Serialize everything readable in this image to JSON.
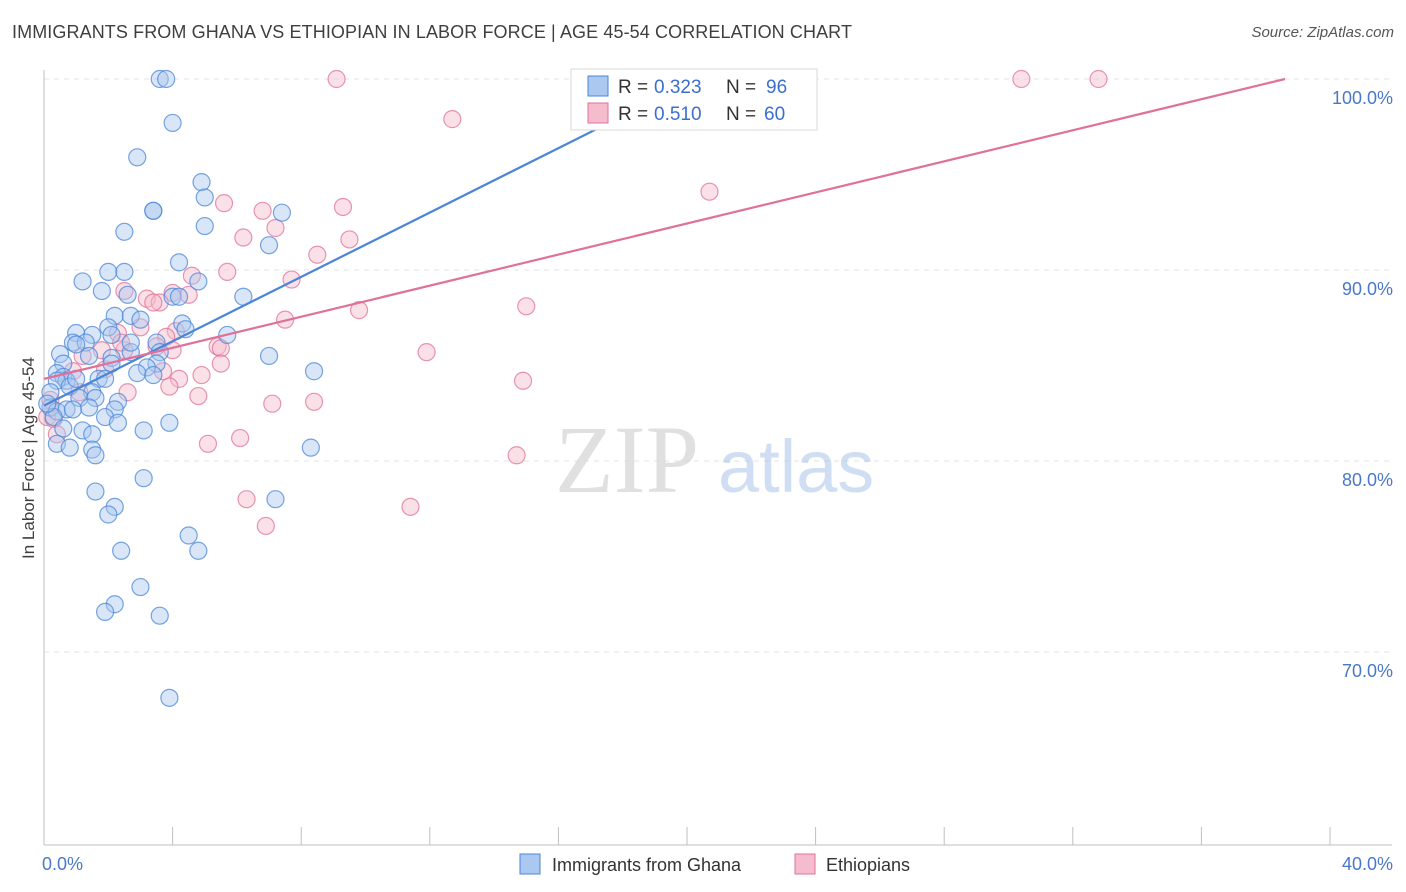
{
  "title": "IMMIGRANTS FROM GHANA VS ETHIOPIAN IN LABOR FORCE | AGE 45-54 CORRELATION CHART",
  "source": "Source: ZipAtlas.com",
  "colors": {
    "ghana": "#4a86d8",
    "ghana_fill": "#aac8f0",
    "ethiopia": "#e0719a",
    "ethiopia_fill": "#f5bccd",
    "axis_text": "#4a78c8",
    "grid": "#e3e3e3"
  },
  "chart_data": {
    "type": "scatter",
    "title": "IMMIGRANTS FROM GHANA VS ETHIOPIAN IN LABOR FORCE | AGE 45-54 CORRELATION CHART",
    "xlabel": "",
    "ylabel": "In Labor Force | Age 45-54",
    "xlim": [
      0,
      40
    ],
    "ylim": [
      60,
      101.5
    ],
    "x_tick_labels": [
      "0.0%",
      "40.0%"
    ],
    "y_ticks": [
      70,
      80,
      90,
      100
    ],
    "y_tick_labels": [
      "70.0%",
      "80.0%",
      "90.0%",
      "100.0%"
    ],
    "grid": true,
    "watermark": {
      "zip": "ZIP",
      "atlas": "atlas"
    },
    "legend": {
      "position": "top-center",
      "rows": [
        {
          "r_label": "R = ",
          "r_value": "0.323",
          "n_label": "N = ",
          "n_value": "96"
        },
        {
          "r_label": "R = ",
          "r_value": "0.510",
          "n_label": "N = ",
          "n_value": "60"
        }
      ]
    },
    "series": [
      {
        "name": "Immigrants from Ghana",
        "trend": {
          "x": [
            0.0,
            20.3
          ],
          "y": [
            82.9,
            100.0
          ]
        },
        "points": [
          [
            3.6,
            100
          ],
          [
            3.8,
            100
          ],
          [
            4.0,
            97.7
          ],
          [
            2.9,
            95.9
          ],
          [
            4.9,
            94.6
          ],
          [
            3.4,
            93.1
          ],
          [
            3.4,
            93.1
          ],
          [
            5.0,
            93.8
          ],
          [
            7.4,
            93.0
          ],
          [
            5.0,
            92.3
          ],
          [
            2.5,
            92.0
          ],
          [
            7.0,
            91.3
          ],
          [
            4.2,
            90.4
          ],
          [
            2.0,
            89.9
          ],
          [
            2.5,
            89.9
          ],
          [
            1.2,
            89.4
          ],
          [
            4.8,
            89.4
          ],
          [
            1.8,
            88.9
          ],
          [
            2.6,
            88.7
          ],
          [
            4.0,
            88.6
          ],
          [
            4.2,
            88.6
          ],
          [
            6.2,
            88.6
          ],
          [
            2.2,
            87.6
          ],
          [
            2.7,
            87.6
          ],
          [
            4.3,
            87.2
          ],
          [
            2.0,
            87.0
          ],
          [
            4.4,
            86.9
          ],
          [
            1.0,
            86.7
          ],
          [
            1.5,
            86.6
          ],
          [
            2.1,
            86.6
          ],
          [
            5.7,
            86.6
          ],
          [
            0.9,
            86.2
          ],
          [
            1.3,
            86.2
          ],
          [
            3.5,
            86.2
          ],
          [
            2.7,
            85.7
          ],
          [
            3.6,
            85.7
          ],
          [
            0.5,
            85.6
          ],
          [
            1.4,
            85.5
          ],
          [
            7.0,
            85.5
          ],
          [
            2.1,
            85.4
          ],
          [
            3.5,
            85.1
          ],
          [
            0.6,
            85.1
          ],
          [
            2.1,
            85.1
          ],
          [
            3.2,
            84.9
          ],
          [
            0.4,
            84.6
          ],
          [
            8.4,
            84.7
          ],
          [
            2.9,
            84.6
          ],
          [
            3.4,
            84.5
          ],
          [
            0.6,
            84.4
          ],
          [
            0.7,
            84.2
          ],
          [
            1.7,
            84.3
          ],
          [
            0.4,
            84.2
          ],
          [
            1.9,
            84.3
          ],
          [
            0.8,
            83.9
          ],
          [
            0.2,
            83.6
          ],
          [
            1.5,
            83.6
          ],
          [
            1.1,
            83.3
          ],
          [
            1.6,
            83.3
          ],
          [
            2.3,
            83.1
          ],
          [
            0.2,
            82.8
          ],
          [
            0.4,
            82.6
          ],
          [
            0.7,
            82.7
          ],
          [
            1.4,
            82.8
          ],
          [
            2.2,
            82.7
          ],
          [
            0.3,
            82.3
          ],
          [
            1.9,
            82.3
          ],
          [
            2.3,
            82.0
          ],
          [
            3.9,
            82.0
          ],
          [
            0.6,
            81.7
          ],
          [
            1.2,
            81.6
          ],
          [
            3.1,
            81.6
          ],
          [
            1.5,
            81.4
          ],
          [
            0.4,
            80.9
          ],
          [
            0.8,
            80.7
          ],
          [
            1.5,
            80.6
          ],
          [
            1.6,
            80.3
          ],
          [
            8.3,
            80.7
          ],
          [
            3.1,
            79.1
          ],
          [
            1.6,
            78.4
          ],
          [
            7.2,
            78.0
          ],
          [
            2.2,
            77.6
          ],
          [
            2.0,
            77.2
          ],
          [
            4.5,
            76.1
          ],
          [
            2.4,
            75.3
          ],
          [
            4.8,
            75.3
          ],
          [
            3.0,
            73.4
          ],
          [
            2.2,
            72.5
          ],
          [
            1.9,
            72.1
          ],
          [
            3.6,
            71.9
          ],
          [
            3.9,
            67.6
          ],
          [
            0.1,
            83.0
          ],
          [
            1.0,
            86.1
          ],
          [
            0.9,
            82.7
          ],
          [
            1.0,
            84.3
          ],
          [
            3.0,
            87.4
          ],
          [
            2.7,
            86.2
          ]
        ]
      },
      {
        "name": "Ethiopians",
        "trend": {
          "x": [
            0.0,
            38.6
          ],
          "y": [
            84.3,
            100.0
          ]
        },
        "points": [
          [
            9.1,
            100
          ],
          [
            30.4,
            100
          ],
          [
            32.8,
            100
          ],
          [
            12.7,
            97.9
          ],
          [
            20.7,
            94.1
          ],
          [
            5.6,
            93.5
          ],
          [
            6.8,
            93.1
          ],
          [
            9.3,
            93.3
          ],
          [
            7.2,
            92.2
          ],
          [
            6.2,
            91.7
          ],
          [
            9.5,
            91.6
          ],
          [
            8.5,
            90.8
          ],
          [
            5.7,
            89.9
          ],
          [
            4.6,
            89.7
          ],
          [
            7.7,
            89.5
          ],
          [
            4.0,
            88.8
          ],
          [
            4.5,
            88.7
          ],
          [
            2.5,
            88.9
          ],
          [
            3.2,
            88.5
          ],
          [
            3.6,
            88.3
          ],
          [
            3.4,
            88.3
          ],
          [
            15.0,
            88.1
          ],
          [
            9.8,
            87.9
          ],
          [
            7.5,
            87.4
          ],
          [
            3.0,
            87.0
          ],
          [
            2.3,
            86.7
          ],
          [
            4.1,
            86.8
          ],
          [
            3.8,
            86.5
          ],
          [
            3.5,
            86.0
          ],
          [
            5.4,
            86.0
          ],
          [
            5.5,
            85.9
          ],
          [
            2.5,
            85.8
          ],
          [
            1.8,
            85.8
          ],
          [
            11.9,
            85.7
          ],
          [
            4.0,
            85.8
          ],
          [
            1.2,
            85.5
          ],
          [
            5.5,
            85.1
          ],
          [
            1.9,
            84.8
          ],
          [
            0.9,
            84.7
          ],
          [
            3.7,
            84.7
          ],
          [
            4.9,
            84.5
          ],
          [
            4.2,
            84.3
          ],
          [
            14.9,
            84.2
          ],
          [
            3.9,
            83.9
          ],
          [
            2.6,
            83.6
          ],
          [
            4.8,
            83.4
          ],
          [
            7.1,
            83.0
          ],
          [
            8.4,
            83.1
          ],
          [
            0.2,
            83.2
          ],
          [
            0.1,
            82.3
          ],
          [
            0.3,
            82.2
          ],
          [
            6.1,
            81.2
          ],
          [
            5.1,
            80.9
          ],
          [
            14.7,
            80.3
          ],
          [
            6.3,
            78.0
          ],
          [
            11.4,
            77.6
          ],
          [
            6.9,
            76.6
          ],
          [
            0.4,
            81.4
          ],
          [
            1.1,
            83.6
          ],
          [
            2.4,
            86.2
          ]
        ]
      }
    ]
  }
}
